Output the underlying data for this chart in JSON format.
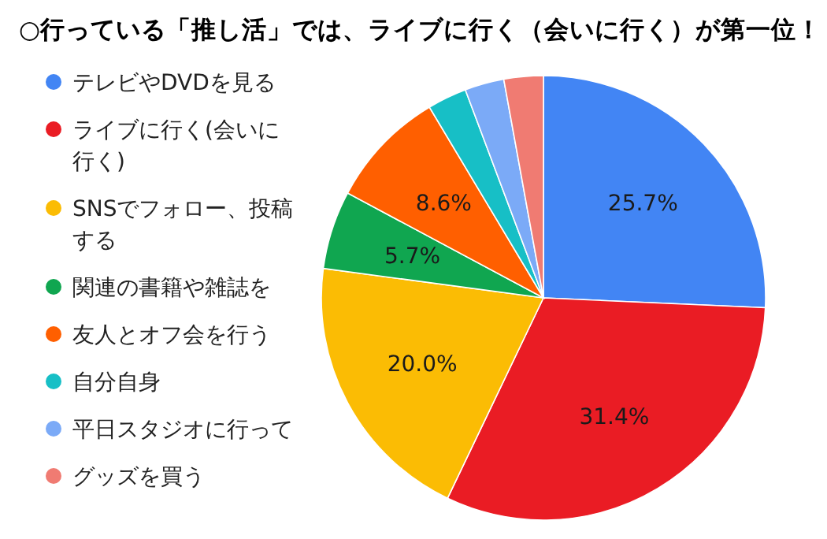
{
  "chart_data": {
    "type": "pie",
    "title": "○行っている「推し活」では、ライブに行く（会いに行く）が第一位！",
    "categories": [
      "テレビやDVDを見る",
      "ライブに行く(会いに行く)",
      "SNSでフォロー、投稿する",
      "関連の書籍や雑誌を",
      "友人とオフ会を行う",
      "自分自身",
      "平日スタジオに行って",
      "グッズを買う"
    ],
    "values": [
      25.7,
      31.4,
      20.0,
      5.7,
      8.6,
      2.86,
      2.86,
      2.86
    ],
    "value_labels": [
      "25.7%",
      "31.4%",
      "20.0%",
      "5.7%",
      "8.6%",
      null,
      null,
      null
    ],
    "colors": [
      "#4285f4",
      "#ea1c24",
      "#fbbc04",
      "#10a650",
      "#ff5f00",
      "#17bfc6",
      "#7baaf7",
      "#f07b72"
    ],
    "legend": "left"
  }
}
